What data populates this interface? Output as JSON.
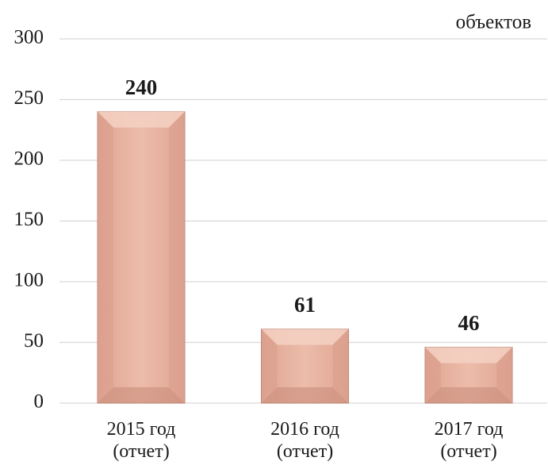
{
  "chart_data": {
    "type": "bar",
    "unit_label": "объектов",
    "categories": [
      "2015 год (отчет)",
      "2016 год (отчет)",
      "2017 год (отчет)"
    ],
    "values": [
      240,
      61,
      46
    ],
    "color": "#e9b3a2",
    "ylim": [
      0,
      300
    ],
    "yticks": [
      0,
      50,
      100,
      150,
      200,
      250,
      300
    ],
    "grid": true
  }
}
